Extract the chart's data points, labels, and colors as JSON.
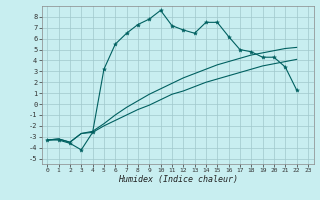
{
  "xlabel": "Humidex (Indice chaleur)",
  "background_color": "#c8eef0",
  "grid_color": "#a0c8cc",
  "line_color": "#006060",
  "xlim": [
    -0.5,
    23.5
  ],
  "ylim": [
    -5.5,
    9.0
  ],
  "yticks": [
    -5,
    -4,
    -3,
    -2,
    -1,
    0,
    1,
    2,
    3,
    4,
    5,
    6,
    7,
    8
  ],
  "xticks": [
    0,
    1,
    2,
    3,
    4,
    5,
    6,
    7,
    8,
    9,
    10,
    11,
    12,
    13,
    14,
    15,
    16,
    17,
    18,
    19,
    20,
    21,
    22,
    23
  ],
  "line1_x": [
    0,
    1,
    2,
    3,
    4,
    5,
    6,
    7,
    8,
    9,
    10,
    11,
    12,
    13,
    14,
    15,
    16,
    17,
    18,
    19,
    20,
    21,
    22
  ],
  "line1_y": [
    -3.3,
    -3.3,
    -3.6,
    -4.2,
    -2.6,
    3.2,
    5.5,
    6.5,
    7.3,
    7.8,
    8.6,
    7.2,
    6.8,
    6.5,
    7.5,
    7.5,
    6.2,
    5.0,
    4.8,
    4.3,
    4.3,
    3.4,
    1.3
  ],
  "line2_x": [
    0,
    1,
    2,
    3,
    4,
    5,
    6,
    7,
    8,
    9,
    10,
    11,
    12,
    13,
    14,
    15,
    16,
    17,
    18,
    19,
    20,
    21,
    22
  ],
  "line2_y": [
    -3.3,
    -3.2,
    -3.5,
    -2.7,
    -2.6,
    -2.0,
    -1.5,
    -1.0,
    -0.5,
    -0.1,
    0.4,
    0.9,
    1.2,
    1.6,
    2.0,
    2.3,
    2.6,
    2.9,
    3.2,
    3.5,
    3.7,
    3.9,
    4.1
  ],
  "line3_x": [
    0,
    1,
    2,
    3,
    4,
    5,
    6,
    7,
    8,
    9,
    10,
    11,
    12,
    13,
    14,
    15,
    16,
    17,
    18,
    19,
    20,
    21,
    22
  ],
  "line3_y": [
    -3.3,
    -3.2,
    -3.5,
    -2.7,
    -2.5,
    -1.8,
    -1.0,
    -0.3,
    0.3,
    0.9,
    1.4,
    1.9,
    2.4,
    2.8,
    3.2,
    3.6,
    3.9,
    4.2,
    4.5,
    4.7,
    4.9,
    5.1,
    5.2
  ]
}
